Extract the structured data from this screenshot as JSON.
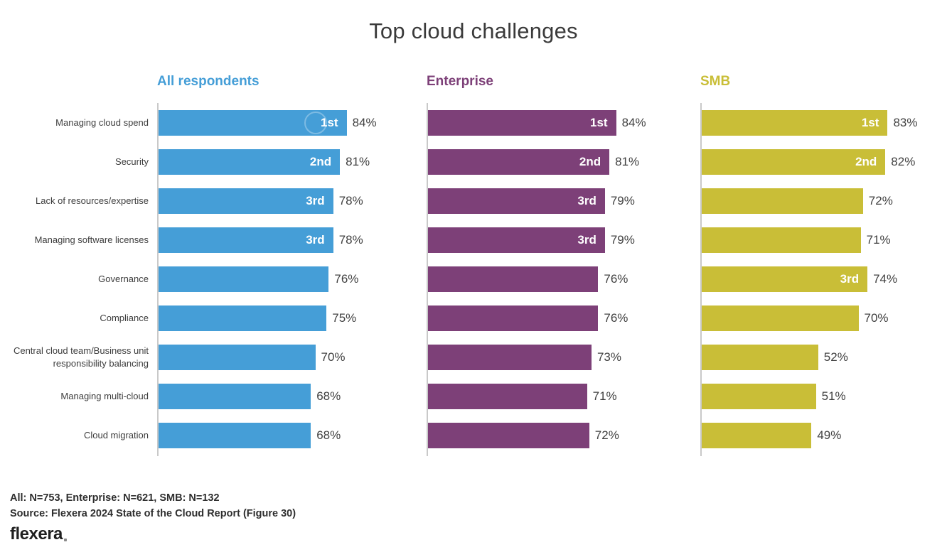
{
  "title": "Top cloud challenges",
  "footnotes": {
    "sample": "All: N=753, Enterprise: N=621, SMB: N=132",
    "source": "Source: Flexera 2024 State of the Cloud Report (Figure 30)"
  },
  "logo": {
    "text": "flexera"
  },
  "colors": {
    "all_respondents": "#459ED7",
    "enterprise": "#7D4078",
    "smb": "#C9BE37",
    "axis": "#C9C9C9",
    "title_text": "#3A3A3A",
    "label_text": "#3D3D3D",
    "value_text": "#414141",
    "badge_text": "#FFFFFF"
  },
  "chart_data": {
    "type": "bar",
    "orientation": "horizontal",
    "xlim": [
      0,
      100
    ],
    "value_suffix": "%",
    "grid": false,
    "legend_position": "none",
    "pixels_per_percent": 3.15,
    "categories": [
      "Managing cloud spend",
      "Security",
      "Lack of resources/expertise",
      "Managing software licenses",
      "Governance",
      "Compliance",
      "Central cloud team/Business unit responsibility balancing",
      "Managing multi-cloud",
      "Cloud migration"
    ],
    "series": [
      {
        "name": "All respondents",
        "color": "#459ED7",
        "values": [
          84,
          81,
          78,
          78,
          76,
          75,
          70,
          68,
          68
        ],
        "ranks": [
          "1st",
          "2nd",
          "3rd",
          "3rd",
          null,
          null,
          null,
          null,
          null
        ]
      },
      {
        "name": "Enterprise",
        "color": "#7D4078",
        "values": [
          84,
          81,
          79,
          79,
          76,
          76,
          73,
          71,
          72
        ],
        "ranks": [
          "1st",
          "2nd",
          "3rd",
          "3rd",
          null,
          null,
          null,
          null,
          null
        ]
      },
      {
        "name": "SMB",
        "color": "#C9BE37",
        "values": [
          83,
          82,
          72,
          71,
          74,
          70,
          52,
          51,
          49
        ],
        "ranks": [
          "1st",
          "2nd",
          null,
          null,
          "3rd",
          null,
          null,
          null,
          null
        ]
      }
    ]
  }
}
